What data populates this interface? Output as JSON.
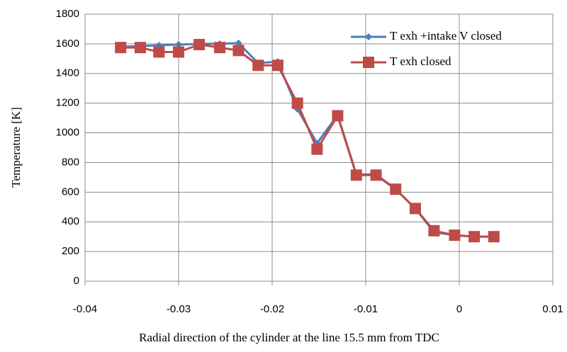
{
  "chart_data": {
    "type": "line",
    "xlabel": "Radial direction of the cylinder at the line 15.5 mm from TDC",
    "ylabel": "Temperature [K]",
    "x": [
      -0.0362,
      -0.0341,
      -0.0321,
      -0.03,
      -0.0278,
      -0.0256,
      -0.0236,
      -0.0215,
      -0.0194,
      -0.0173,
      -0.0152,
      -0.013,
      -0.011,
      -0.0089,
      -0.0068,
      -0.0047,
      -0.0027,
      -0.0005,
      0.0016,
      0.0037
    ],
    "series": [
      {
        "name": "T exh +intake V closed",
        "color": "#4a7ebb",
        "marker": "diamond",
        "values": [
          1580,
          1585,
          1590,
          1595,
          1600,
          1600,
          1605,
          1470,
          1480,
          1160,
          930,
          1120,
          720,
          720,
          620,
          490,
          330,
          310,
          300,
          300
        ]
      },
      {
        "name": "T exh closed",
        "color": "#be4b48",
        "marker": "square",
        "values": [
          1575,
          1575,
          1545,
          1545,
          1595,
          1575,
          1555,
          1455,
          1455,
          1200,
          890,
          1115,
          715,
          715,
          620,
          490,
          340,
          310,
          300,
          300
        ]
      }
    ],
    "xlim": [
      -0.04,
      0.01
    ],
    "xticks": [
      -0.04,
      -0.03,
      -0.02,
      -0.01,
      0,
      0.01
    ],
    "ylim": [
      0,
      1800
    ],
    "yticks": [
      0,
      200,
      400,
      600,
      800,
      1000,
      1200,
      1400,
      1600,
      1800
    ],
    "grid": true,
    "legend": "upper right"
  }
}
